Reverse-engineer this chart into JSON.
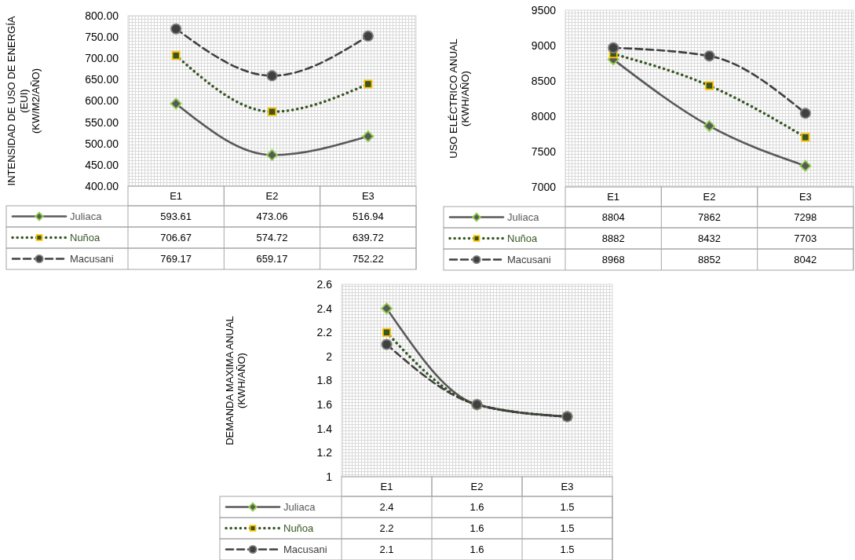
{
  "chart_data": [
    {
      "type": "line",
      "ylabel": "INTENSIDAD DE USO DE ENERGÍA\n(EUI)\n(KW/M2/AÑO)",
      "categories": [
        "E1",
        "E2",
        "E3"
      ],
      "ylim": [
        400,
        800
      ],
      "yticks": [
        {
          "value": 400,
          "label": "400.00"
        },
        {
          "value": 450,
          "label": "450.00"
        },
        {
          "value": 500,
          "label": "500.00"
        },
        {
          "value": 550,
          "label": "550.00"
        },
        {
          "value": 600,
          "label": "600.00"
        },
        {
          "value": 650,
          "label": "650.00"
        },
        {
          "value": 700,
          "label": "700.00"
        },
        {
          "value": 750,
          "label": "750.00"
        },
        {
          "value": 800,
          "label": "800.00"
        }
      ],
      "legend": "bottom",
      "data_labels": true,
      "series": [
        {
          "name": "Juliaca",
          "color": "#595959",
          "marker": "diamond",
          "line_style": "solid",
          "values": [
            593.61,
            473.06,
            516.94
          ]
        },
        {
          "name": "Nuñoa",
          "color": "#375623",
          "marker": "square",
          "line_style": "dotted",
          "values": [
            706.67,
            574.72,
            639.72
          ]
        },
        {
          "name": "Macusani",
          "color": "#404040",
          "marker": "circle",
          "line_style": "dashed",
          "values": [
            769.17,
            659.17,
            752.22
          ]
        }
      ]
    },
    {
      "type": "line",
      "ylabel": "USO ELÉCTRICO ANUAL\n(KWH/AÑO)",
      "categories": [
        "E1",
        "E2",
        "E3"
      ],
      "ylim": [
        7000,
        9500
      ],
      "yticks": [
        7000,
        7500,
        8000,
        8500,
        9000,
        9500
      ],
      "legend": "bottom",
      "data_labels": true,
      "series": [
        {
          "name": "Juliaca",
          "color": "#595959",
          "marker": "diamond",
          "line_style": "solid",
          "values": [
            8804,
            7862,
            7298
          ]
        },
        {
          "name": "Nuñoa",
          "color": "#375623",
          "marker": "square",
          "line_style": "dotted",
          "values": [
            8882,
            8432,
            7703
          ]
        },
        {
          "name": "Macusani",
          "color": "#404040",
          "marker": "circle",
          "line_style": "dashed",
          "values": [
            8968,
            8852,
            8042
          ]
        }
      ]
    },
    {
      "type": "line",
      "ylabel": "DEMANDA MAXIMA ANUAL\n(KWH/AÑO)",
      "categories": [
        "E1",
        "E2",
        "E3"
      ],
      "ylim": [
        1,
        2.6
      ],
      "yticks": [
        1,
        1.2,
        1.4,
        1.6,
        1.8,
        2,
        2.2,
        2.4,
        2.6
      ],
      "legend": "bottom",
      "data_labels": true,
      "series": [
        {
          "name": "Juliaca",
          "color": "#595959",
          "marker": "diamond",
          "line_style": "solid",
          "values": [
            2.4,
            1.6,
            1.5
          ]
        },
        {
          "name": "Nuñoa",
          "color": "#375623",
          "marker": "square",
          "line_style": "dotted",
          "values": [
            2.2,
            1.6,
            1.5
          ]
        },
        {
          "name": "Macusani",
          "color": "#404040",
          "marker": "circle",
          "line_style": "dashed",
          "values": [
            2.1,
            1.6,
            1.5
          ]
        }
      ]
    }
  ]
}
